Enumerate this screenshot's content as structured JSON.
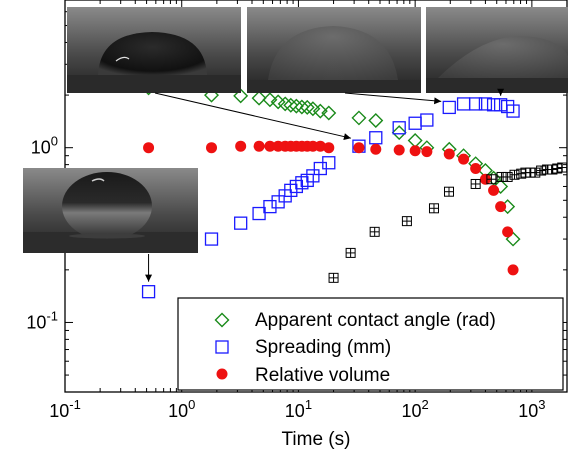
{
  "chart_data": {
    "type": "scatter",
    "xscale": "log",
    "yscale": "log",
    "xlim": [
      0.1,
      2000
    ],
    "ylim": [
      0.04,
      7
    ],
    "xlabel": "Time (s)",
    "ylabel": "",
    "x_ticks": [
      {
        "value": 0.1,
        "base": "10",
        "exp": "-1"
      },
      {
        "value": 1,
        "base": "10",
        "exp": "0"
      },
      {
        "value": 10,
        "base": "10",
        "exp": "1"
      },
      {
        "value": 100,
        "base": "10",
        "exp": "2"
      },
      {
        "value": 1000,
        "base": "10",
        "exp": "3"
      }
    ],
    "y_ticks": [
      {
        "value": 0.1,
        "base": "10",
        "exp": "-1"
      },
      {
        "value": 1,
        "base": "10",
        "exp": "0"
      }
    ],
    "legend_position": "bottom-right",
    "series": [
      {
        "name": "Apparent contact angle (rad)",
        "marker": "diamond-open",
        "color": "#1a8a1a",
        "x": [
          0.52,
          1.8,
          3.2,
          4.6,
          5.7,
          6.7,
          7.7,
          8.6,
          9.6,
          10.7,
          11.9,
          13.3,
          15.4,
          18.2,
          33,
          46,
          73,
          100,
          126,
          196,
          260,
          330,
          400,
          470,
          540,
          620,
          690
        ],
        "y": [
          2.2,
          2.0,
          1.98,
          1.92,
          1.88,
          1.83,
          1.78,
          1.75,
          1.73,
          1.71,
          1.7,
          1.67,
          1.62,
          1.58,
          1.48,
          1.43,
          1.22,
          1.1,
          1.0,
          0.98,
          0.9,
          0.81,
          0.74,
          0.67,
          0.6,
          0.46,
          0.3
        ]
      },
      {
        "name": "Spreading (mm)",
        "marker": "square-open",
        "color": "#1a1aff",
        "x": [
          0.52,
          1.8,
          3.2,
          4.6,
          5.7,
          6.7,
          7.7,
          8.6,
          9.6,
          10.7,
          11.9,
          13.3,
          15.4,
          18.2,
          33,
          46,
          73,
          100,
          126,
          196,
          260,
          330,
          400,
          470,
          540,
          620,
          690
        ],
        "y": [
          0.15,
          0.3,
          0.37,
          0.42,
          0.46,
          0.49,
          0.53,
          0.57,
          0.6,
          0.63,
          0.65,
          0.69,
          0.76,
          0.82,
          1.02,
          1.14,
          1.3,
          1.38,
          1.44,
          1.7,
          1.78,
          1.78,
          1.78,
          1.76,
          1.76,
          1.72,
          1.62
        ]
      },
      {
        "name": "Relative volume",
        "marker": "circle-filled",
        "color": "#ee1111",
        "x": [
          0.52,
          1.8,
          3.2,
          4.6,
          5.7,
          6.7,
          7.7,
          8.6,
          9.6,
          10.7,
          11.9,
          13.3,
          15.4,
          18.2,
          33,
          46,
          73,
          100,
          126,
          196,
          260,
          330,
          400,
          470,
          540,
          620,
          690
        ],
        "y": [
          1.0,
          1.0,
          1.02,
          1.02,
          1.02,
          1.02,
          1.02,
          1.02,
          1.02,
          1.02,
          1.02,
          1.02,
          1.02,
          1.0,
          1.0,
          0.98,
          0.97,
          0.96,
          0.95,
          0.92,
          0.86,
          0.76,
          0.66,
          0.57,
          0.46,
          0.33,
          0.2
        ]
      },
      {
        "name": "",
        "marker": "square-plus",
        "color": "#000000",
        "x": [
          20,
          28,
          45,
          85,
          145,
          195,
          330,
          450,
          550,
          620,
          710,
          810,
          880,
          970,
          1070,
          1200,
          1350,
          1500,
          1650,
          1820
        ],
        "y": [
          0.18,
          0.25,
          0.33,
          0.38,
          0.45,
          0.56,
          0.62,
          0.66,
          0.68,
          0.68,
          0.7,
          0.71,
          0.72,
          0.72,
          0.72,
          0.74,
          0.75,
          0.75,
          0.76,
          0.77
        ]
      }
    ],
    "insets": [
      {
        "x": 0.52,
        "y": 0.15
      },
      {
        "x": 33,
        "y": 1.02
      },
      {
        "x": 196,
        "y": 1.7
      },
      {
        "x": 540,
        "y": 1.76
      }
    ]
  }
}
